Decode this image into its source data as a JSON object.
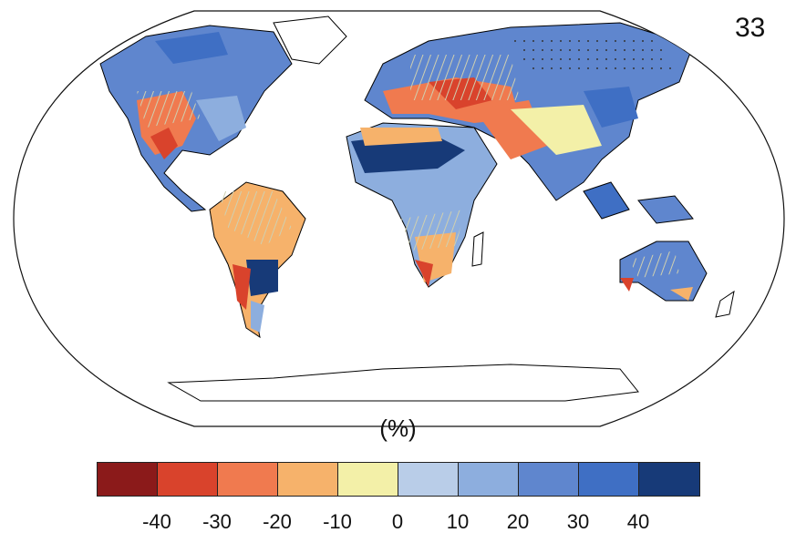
{
  "panel_number": "33",
  "unit_label": "(%)",
  "legend": {
    "colors": [
      "#8b1a1a",
      "#d9432c",
      "#f07a4f",
      "#f6b26b",
      "#f3f0a8",
      "#b9cde8",
      "#8daede",
      "#5f86ce",
      "#3f6fc4",
      "#173a78"
    ],
    "ticks": [
      "-40",
      "-30",
      "-20",
      "-10",
      "0",
      "10",
      "20",
      "30",
      "40"
    ]
  },
  "map": {
    "projection": "Robinson",
    "variable_units": "%",
    "ocean_color": "#ffffff",
    "stippling": true,
    "hatching": true
  }
}
